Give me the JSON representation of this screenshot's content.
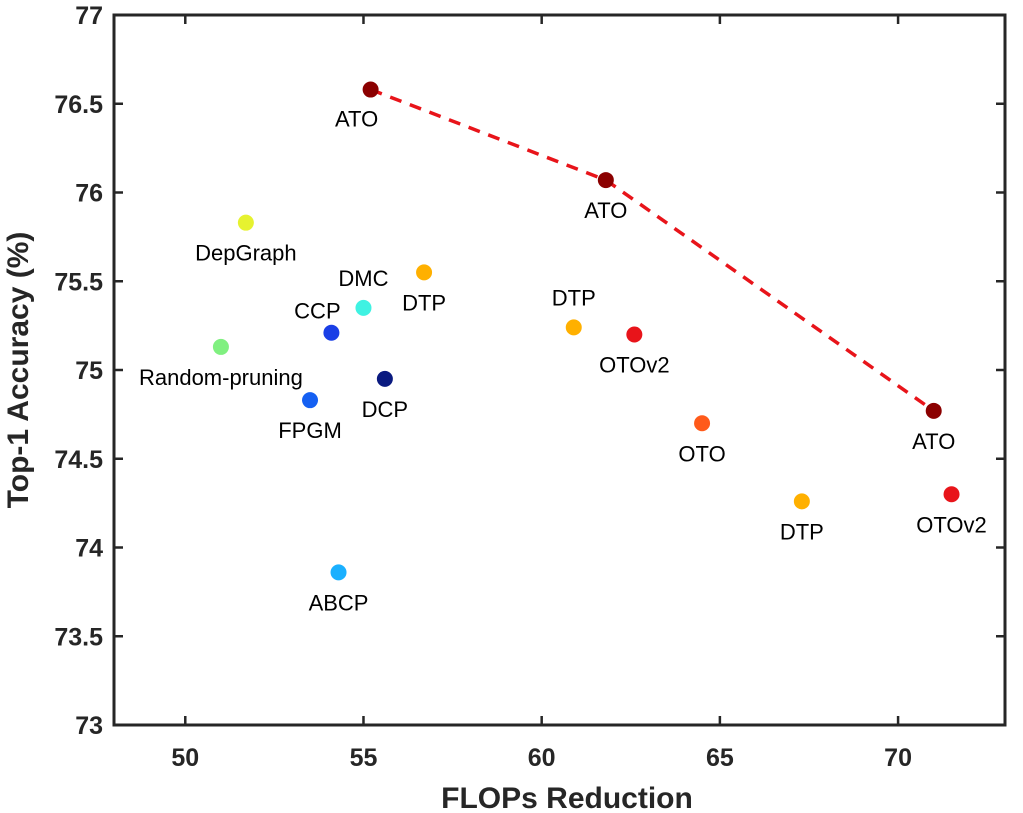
{
  "chart_data": {
    "type": "scatter",
    "title": "",
    "xlabel": "FLOPs Reduction",
    "ylabel": "Top-1 Accuracy (%)",
    "xlim": [
      48,
      73
    ],
    "ylim": [
      73,
      77
    ],
    "xticks": [
      50,
      55,
      60,
      65,
      70
    ],
    "yticks": [
      73,
      73.5,
      74,
      74.5,
      75,
      75.5,
      76,
      76.5,
      77
    ],
    "xtick_labels": [
      "50",
      "55",
      "60",
      "65",
      "70"
    ],
    "ytick_labels": [
      "73",
      "73.5",
      "74",
      "74.5",
      "75",
      "75.5",
      "76",
      "76.5",
      "77"
    ],
    "grid": false,
    "points": [
      {
        "label": "ATO",
        "x": 55.2,
        "y": 76.58,
        "color": "#8b0000",
        "label_pos": "below-left"
      },
      {
        "label": "ATO",
        "x": 61.8,
        "y": 76.07,
        "color": "#8b0000",
        "label_pos": "below"
      },
      {
        "label": "ATO",
        "x": 71.0,
        "y": 74.77,
        "color": "#8b0000",
        "label_pos": "below"
      },
      {
        "label": "DepGraph",
        "x": 51.7,
        "y": 75.83,
        "color": "#e6f230",
        "label_pos": "below"
      },
      {
        "label": "DMC",
        "x": 55.0,
        "y": 75.35,
        "color": "#3ff2e2",
        "label_pos": "above"
      },
      {
        "label": "DTP",
        "x": 56.7,
        "y": 75.55,
        "color": "#ffb000",
        "label_pos": "below"
      },
      {
        "label": "CCP",
        "x": 54.1,
        "y": 75.21,
        "color": "#1a3fe6",
        "label_pos": "above-left"
      },
      {
        "label": "Random-pruning",
        "x": 51.0,
        "y": 75.13,
        "color": "#80f080",
        "label_pos": "below"
      },
      {
        "label": "DCP",
        "x": 55.6,
        "y": 74.95,
        "color": "#0a1a80",
        "label_pos": "below"
      },
      {
        "label": "FPGM",
        "x": 53.5,
        "y": 74.83,
        "color": "#1560f2",
        "label_pos": "below"
      },
      {
        "label": "DTP",
        "x": 60.9,
        "y": 75.24,
        "color": "#ffb000",
        "label_pos": "above"
      },
      {
        "label": "OTOv2",
        "x": 62.6,
        "y": 75.2,
        "color": "#e8141a",
        "label_pos": "below"
      },
      {
        "label": "OTO",
        "x": 64.5,
        "y": 74.7,
        "color": "#ff5a1a",
        "label_pos": "below"
      },
      {
        "label": "DTP",
        "x": 67.3,
        "y": 74.26,
        "color": "#ffb000",
        "label_pos": "below"
      },
      {
        "label": "OTOv2",
        "x": 71.5,
        "y": 74.3,
        "color": "#e8141a",
        "label_pos": "below"
      },
      {
        "label": "ABCP",
        "x": 54.3,
        "y": 73.86,
        "color": "#1ab0ff",
        "label_pos": "below"
      }
    ],
    "pareto_line": {
      "color": "#e8141a",
      "style": "dashed",
      "points": [
        [
          55.2,
          76.58
        ],
        [
          61.8,
          76.07
        ],
        [
          71.0,
          74.77
        ]
      ]
    }
  }
}
